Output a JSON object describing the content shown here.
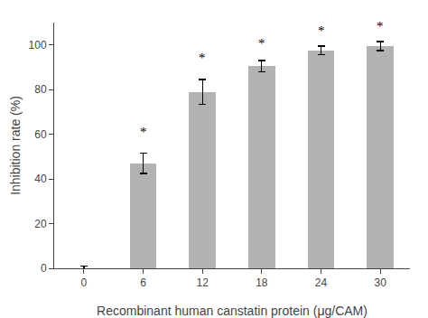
{
  "chart_data": {
    "type": "bar",
    "x": [
      0,
      6,
      12,
      18,
      24,
      30
    ],
    "values": [
      1.0,
      47.0,
      79.0,
      90.5,
      97.5,
      99.5
    ],
    "errors": [
      0.0,
      4.5,
      5.5,
      2.5,
      2.0,
      2.0
    ],
    "colors": [
      "#000000",
      "#b2b2b2",
      "#b2b2b2",
      "#b2b2b2",
      "#b2b2b2",
      "#b2b2b2"
    ],
    "xlabel": "Recombinant human canstatin protein (μg/CAM)",
    "ylabel": "Inhibition rate (%)",
    "xlim": [
      -3,
      33
    ],
    "xticks": [
      0,
      6,
      12,
      18,
      24,
      30
    ],
    "ylim": [
      0,
      110
    ],
    "yticks": [
      0,
      20,
      40,
      60,
      80,
      100
    ],
    "annotations": [
      {
        "x": 6,
        "y": 57.0,
        "text": "*"
      },
      {
        "x": 12,
        "y": 90.0,
        "text": "*"
      },
      {
        "x": 18,
        "y": 96.5,
        "text": "*"
      },
      {
        "x": 24,
        "y": 102.5,
        "text": "*"
      },
      {
        "x": 30,
        "y": 104.5,
        "text": "*"
      }
    ],
    "grid": false
  }
}
